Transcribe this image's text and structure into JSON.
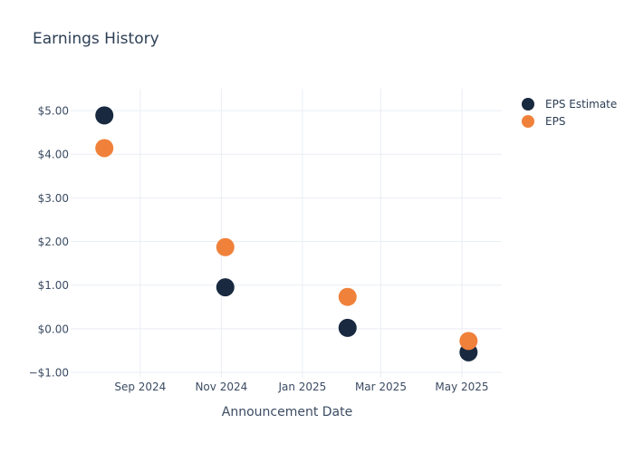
{
  "title": "Earnings History",
  "colors": {
    "background": "#ffffff",
    "grid": "#e9eef4",
    "title_text": "#2d3f55",
    "axis_text": "#3c4c63",
    "estimate": "#182940",
    "eps": "#f0813a"
  },
  "chart_data": {
    "type": "scatter",
    "title": "Earnings History",
    "xlabel": "Announcement Date",
    "ylabel": "",
    "grid": true,
    "legend_position": "right",
    "marker_radius": 10,
    "x_domain": [
      "2024-07-12",
      "2025-05-31"
    ],
    "ylim": [
      -1,
      5.5
    ],
    "x_ticks": [
      {
        "date": "2024-09-01",
        "label": "Sep 2024"
      },
      {
        "date": "2024-11-01",
        "label": "Nov 2024"
      },
      {
        "date": "2025-01-01",
        "label": "Jan 2025"
      },
      {
        "date": "2025-03-01",
        "label": "Mar 2025"
      },
      {
        "date": "2025-05-01",
        "label": "May 2025"
      }
    ],
    "y_ticks": [
      {
        "value": 5,
        "label": "$5.00"
      },
      {
        "value": 4,
        "label": "$4.00"
      },
      {
        "value": 3,
        "label": "$3.00"
      },
      {
        "value": 2,
        "label": "$2.00"
      },
      {
        "value": 1,
        "label": "$1.00"
      },
      {
        "value": 0,
        "label": "$0.00"
      },
      {
        "value": -1,
        "label": "−$1.00"
      }
    ],
    "series": [
      {
        "name": "EPS Estimate",
        "color": "#182940",
        "points": [
          {
            "date": "2024-08-05",
            "value": 4.89
          },
          {
            "date": "2024-11-04",
            "value": 0.95
          },
          {
            "date": "2025-02-04",
            "value": 0.02
          },
          {
            "date": "2025-05-06",
            "value": -0.54
          }
        ]
      },
      {
        "name": "EPS",
        "color": "#f0813a",
        "points": [
          {
            "date": "2024-08-05",
            "value": 4.14
          },
          {
            "date": "2024-11-04",
            "value": 1.87
          },
          {
            "date": "2025-02-04",
            "value": 0.73
          },
          {
            "date": "2025-05-06",
            "value": -0.28
          }
        ]
      }
    ]
  }
}
